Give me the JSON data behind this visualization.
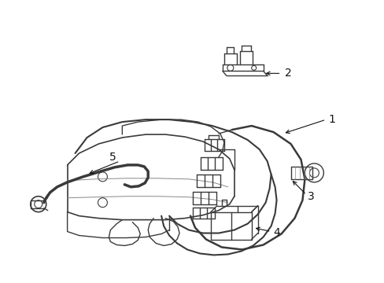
{
  "background_color": "#ffffff",
  "line_color": "#3a3a3a",
  "line_width": 1.0,
  "label_fontsize": 10,
  "figsize": [
    4.89,
    3.6
  ],
  "dpi": 100,
  "label_color": "#111111"
}
